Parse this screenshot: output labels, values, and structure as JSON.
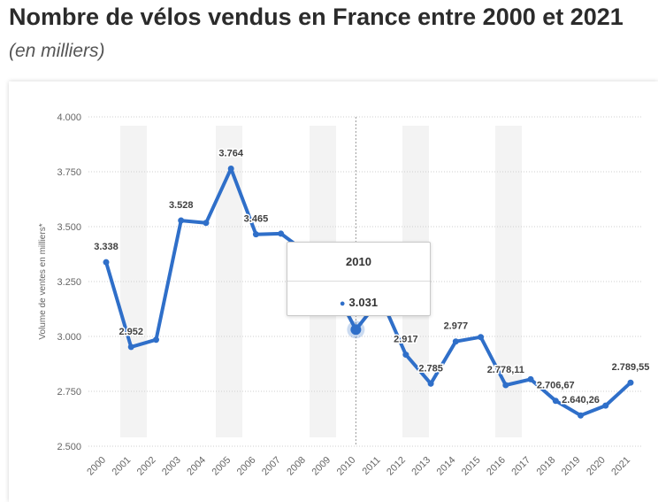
{
  "header": {
    "title": "Nombre de vélos vendus en France entre 2000 et 2021",
    "subtitle": "(en milliers)"
  },
  "colors": {
    "line": "#2f6fc9",
    "grid": "#cfcfcf",
    "axis_text": "#666666",
    "label_text": "#404040",
    "watermark": "#f3f3f3"
  },
  "tooltip": {
    "year": "2010",
    "value": "3.031"
  },
  "chart_data": {
    "type": "line",
    "ylabel": "Volume de ventes en milliers*",
    "xlabel": "",
    "ylim": [
      2500,
      4000
    ],
    "yticks": [
      2500,
      2750,
      3000,
      3250,
      3500,
      3750,
      4000
    ],
    "ytick_labels": [
      "2.500",
      "2.750",
      "3.000",
      "3.250",
      "3.500",
      "3.750",
      "4.000"
    ],
    "categories": [
      "2000",
      "2001",
      "2002",
      "2003",
      "2004",
      "2005",
      "2006",
      "2007",
      "2008",
      "2009",
      "2010",
      "2011",
      "2012",
      "2013",
      "2014",
      "2015",
      "2016",
      "2017",
      "2018",
      "2019",
      "2020",
      "2021"
    ],
    "series": [
      {
        "values": [
          3338,
          2952,
          2985,
          3528,
          3517,
          3764,
          3465,
          3468,
          3384,
          3247,
          3031,
          3175,
          2917,
          2785,
          2977,
          2997,
          2778.11,
          2805,
          2706.67,
          2640.26,
          2685,
          2789.55
        ]
      }
    ],
    "data_labels": [
      {
        "index": 0,
        "text": "3.338"
      },
      {
        "index": 1,
        "text": "2.952"
      },
      {
        "index": 3,
        "text": "3.528"
      },
      {
        "index": 5,
        "text": "3.764"
      },
      {
        "index": 6,
        "text": "3.465"
      },
      {
        "index": 12,
        "text": "2.917"
      },
      {
        "index": 13,
        "text": "2.785"
      },
      {
        "index": 14,
        "text": "2.977"
      },
      {
        "index": 16,
        "text": "2.778,11"
      },
      {
        "index": 18,
        "text": "2.706,67"
      },
      {
        "index": 19,
        "text": "2.640,26"
      },
      {
        "index": 21,
        "text": "2.789,55"
      }
    ],
    "highlighted_index": 10,
    "grid": true,
    "legend": "none"
  }
}
